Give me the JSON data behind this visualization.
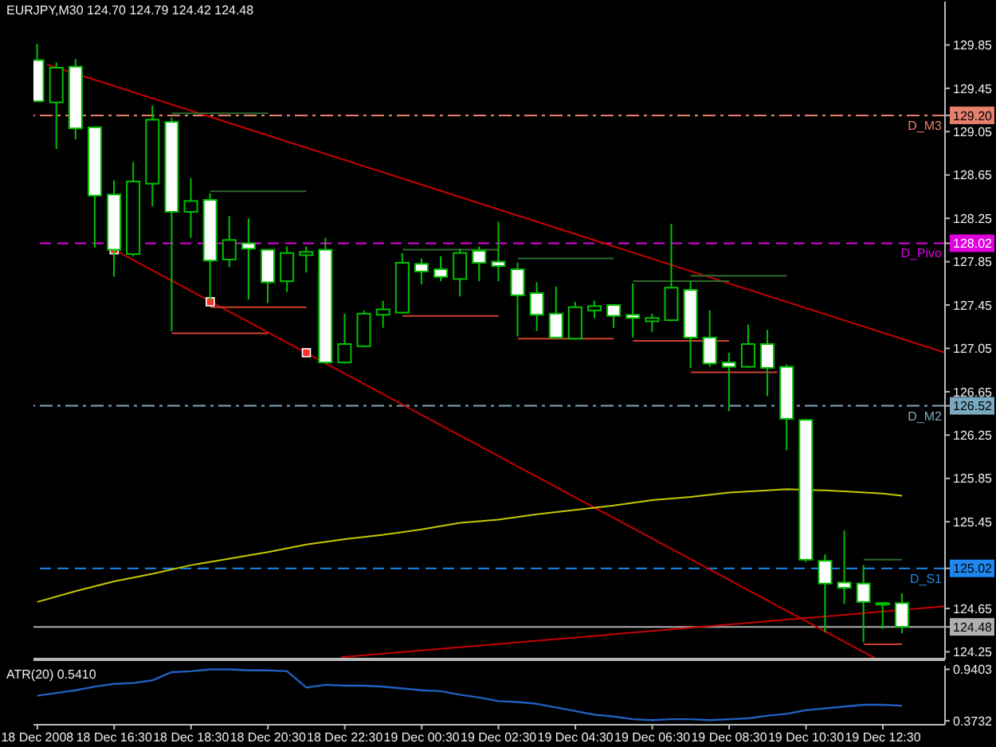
{
  "chart_data": [
    {
      "type": "candlestick",
      "title": "EURJPY,M30 124.70 124.79 124.42 124.48",
      "color": "#00c000",
      "tick_labels": "y",
      "xlim": [
        "2008-12-18T14:24",
        "2008-12-19T14:07"
      ],
      "ylim": [
        124.18,
        130.25
      ],
      "yticks": [
        124.25,
        124.48,
        124.65,
        125.02,
        125.45,
        125.85,
        126.25,
        126.52,
        126.65,
        127.05,
        127.45,
        127.85,
        128.02,
        128.25,
        128.65,
        129.05,
        {
          "value": 129.2,
          "label": "129.20"
        },
        129.45,
        129.85
      ],
      "x": [
        "2008-12-18T14:30",
        "2008-12-18T15:00",
        "2008-12-18T15:30",
        "2008-12-18T16:00",
        "2008-12-18T16:30",
        "2008-12-18T17:00",
        "2008-12-18T17:30",
        "2008-12-18T18:00",
        "2008-12-18T18:30",
        "2008-12-18T19:00",
        "2008-12-18T19:30",
        "2008-12-18T20:00",
        "2008-12-18T20:30",
        "2008-12-18T21:00",
        "2008-12-18T21:30",
        "2008-12-18T22:00",
        "2008-12-18T22:30",
        "2008-12-18T23:00",
        "2008-12-18T23:30",
        "2008-12-19T00:00",
        "2008-12-19T00:30",
        "2008-12-19T01:00",
        "2008-12-19T01:30",
        "2008-12-19T02:00",
        "2008-12-19T02:30",
        "2008-12-19T03:00",
        "2008-12-19T03:30",
        "2008-12-19T04:00",
        "2008-12-19T04:30",
        "2008-12-19T05:00",
        "2008-12-19T05:30",
        "2008-12-19T06:00",
        "2008-12-19T06:30",
        "2008-12-19T07:00",
        "2008-12-19T07:30",
        "2008-12-19T08:00",
        "2008-12-19T08:30",
        "2008-12-19T09:00",
        "2008-12-19T09:30",
        "2008-12-19T10:00",
        "2008-12-19T10:30",
        "2008-12-19T11:00",
        "2008-12-19T11:30",
        "2008-12-19T12:00",
        "2008-12-19T12:30",
        "2008-12-19T13:00"
      ],
      "ohlc": [
        [
          129.71,
          129.86,
          129.33,
          129.33
        ],
        [
          129.32,
          129.69,
          128.89,
          129.64
        ],
        [
          129.65,
          129.72,
          128.98,
          129.08
        ],
        [
          129.09,
          129.09,
          127.98,
          128.46
        ],
        [
          128.47,
          128.6,
          127.71,
          127.96
        ],
        [
          127.92,
          128.77,
          127.9,
          128.59
        ],
        [
          128.57,
          129.29,
          128.36,
          129.16
        ],
        [
          129.14,
          129.18,
          127.21,
          128.31
        ],
        [
          128.31,
          128.62,
          128.07,
          128.41
        ],
        [
          128.42,
          128.48,
          127.49,
          127.86
        ],
        [
          127.87,
          128.27,
          127.8,
          128.05
        ],
        [
          128.02,
          128.25,
          127.5,
          127.97
        ],
        [
          127.96,
          127.96,
          127.47,
          127.66
        ],
        [
          127.67,
          127.99,
          127.57,
          127.93
        ],
        [
          127.91,
          127.99,
          127.75,
          127.94
        ],
        [
          127.96,
          128.07,
          126.91,
          126.92
        ],
        [
          126.92,
          127.37,
          126.91,
          127.09
        ],
        [
          127.07,
          127.4,
          127.06,
          127.37
        ],
        [
          127.36,
          127.49,
          127.24,
          127.41
        ],
        [
          127.38,
          127.93,
          127.37,
          127.84
        ],
        [
          127.83,
          127.88,
          127.64,
          127.76
        ],
        [
          127.78,
          127.9,
          127.67,
          127.71
        ],
        [
          127.69,
          127.97,
          127.53,
          127.93
        ],
        [
          127.95,
          127.99,
          127.67,
          127.84
        ],
        [
          127.85,
          128.22,
          127.67,
          127.81
        ],
        [
          127.78,
          127.84,
          127.16,
          127.54
        ],
        [
          127.56,
          127.66,
          127.21,
          127.36
        ],
        [
          127.37,
          127.62,
          127.14,
          127.15
        ],
        [
          127.14,
          127.48,
          127.13,
          127.43
        ],
        [
          127.4,
          127.49,
          127.33,
          127.44
        ],
        [
          127.45,
          127.46,
          127.24,
          127.35
        ],
        [
          127.36,
          127.65,
          127.15,
          127.33
        ],
        [
          127.3,
          127.37,
          127.2,
          127.33
        ],
        [
          127.31,
          128.2,
          127.3,
          127.61
        ],
        [
          127.59,
          127.67,
          126.87,
          127.15
        ],
        [
          127.15,
          127.4,
          126.88,
          126.91
        ],
        [
          126.92,
          127.01,
          126.47,
          126.88
        ],
        [
          126.88,
          127.27,
          126.87,
          127.09
        ],
        [
          127.09,
          127.22,
          126.61,
          126.87
        ],
        [
          126.88,
          126.9,
          126.11,
          126.4
        ],
        [
          126.39,
          126.4,
          125.08,
          125.1
        ],
        [
          125.09,
          125.15,
          124.43,
          124.88
        ],
        [
          124.89,
          125.37,
          124.69,
          124.84
        ],
        [
          124.88,
          125.05,
          124.34,
          124.71
        ],
        [
          124.69,
          124.71,
          124.46,
          124.7
        ],
        [
          124.7,
          124.79,
          124.42,
          124.48
        ]
      ],
      "ref_lines": [
        {
          "axis": "y",
          "value": 129.2,
          "label": "D_M3",
          "color": "#e8806c",
          "line_style": "dashdot"
        },
        {
          "axis": "y",
          "value": 128.02,
          "label": "D_Pivo",
          "color": "#e000e0",
          "line_style": "dashed"
        },
        {
          "axis": "y",
          "value": 126.52,
          "label": "D_M2",
          "color": "#7aaac0",
          "line_style": "dashdot"
        },
        {
          "axis": "y",
          "value": 125.02,
          "label": "D_S1",
          "color": "#1e88f0",
          "line_style": "dashed"
        },
        {
          "axis": "y",
          "value": 124.48,
          "color": "#b0b0b0",
          "line_style": "solid"
        }
      ],
      "series": [
        {
          "type": "line",
          "color": "#c80000",
          "x": [
            "2008-12-18T14:45",
            "2008-12-19T14:07"
          ],
          "values": [
            129.67,
            127.01
          ]
        },
        {
          "type": "line",
          "color": "#c80000",
          "x": [
            "2008-12-18T16:30",
            "2008-12-19T12:18"
          ],
          "values": [
            127.96,
            124.19
          ]
        },
        {
          "type": "line",
          "color": "#c80000",
          "x": [
            "2008-12-18T22:24",
            "2008-12-19T14:07"
          ],
          "values": [
            124.2,
            124.67
          ]
        },
        {
          "type": "line",
          "color": "#c8c800",
          "x": [
            "2008-12-18T14:30",
            "2008-12-18T15:30",
            "2008-12-18T16:30",
            "2008-12-18T17:30",
            "2008-12-18T18:30",
            "2008-12-18T19:30",
            "2008-12-18T20:30",
            "2008-12-18T21:30",
            "2008-12-18T22:30",
            "2008-12-18T23:30",
            "2008-12-19T00:30",
            "2008-12-19T01:30",
            "2008-12-19T02:30",
            "2008-12-19T03:30",
            "2008-12-19T04:30",
            "2008-12-19T05:30",
            "2008-12-19T06:30",
            "2008-12-19T07:30",
            "2008-12-19T08:30",
            "2008-12-19T09:30",
            "2008-12-19T10:00",
            "2008-12-19T11:00",
            "2008-12-19T11:30",
            "2008-12-19T12:30",
            "2008-12-19T13:00"
          ],
          "values": [
            124.71,
            124.81,
            124.9,
            124.97,
            125.05,
            125.11,
            125.17,
            125.24,
            125.29,
            125.33,
            125.38,
            125.44,
            125.47,
            125.52,
            125.56,
            125.6,
            125.65,
            125.68,
            125.72,
            125.74,
            125.75,
            125.74,
            125.73,
            125.71,
            125.69
          ]
        },
        {
          "type": "line",
          "color": "#2d6a2d",
          "x": [
            "2008-12-18T18:00",
            "2008-12-18T20:30"
          ],
          "values": [
            129.22,
            129.22
          ]
        },
        {
          "type": "line",
          "color": "#d04030",
          "x": [
            "2008-12-18T18:00",
            "2008-12-18T20:30"
          ],
          "values": [
            127.19,
            127.19
          ]
        },
        {
          "type": "line",
          "color": "#2d6a2d",
          "x": [
            "2008-12-18T19:00",
            "2008-12-18T21:30"
          ],
          "values": [
            128.5,
            128.5
          ]
        },
        {
          "type": "line",
          "color": "#d04030",
          "x": [
            "2008-12-18T19:00",
            "2008-12-18T21:30"
          ],
          "values": [
            127.43,
            127.43
          ]
        },
        {
          "type": "line",
          "color": "#2d6a2d",
          "x": [
            "2008-12-19T00:00",
            "2008-12-19T02:30"
          ],
          "values": [
            127.96,
            127.96
          ]
        },
        {
          "type": "line",
          "color": "#d04030",
          "x": [
            "2008-12-19T00:00",
            "2008-12-19T02:30"
          ],
          "values": [
            127.35,
            127.35
          ]
        },
        {
          "type": "line",
          "color": "#2d6a2d",
          "x": [
            "2008-12-19T03:00",
            "2008-12-19T05:30"
          ],
          "values": [
            127.88,
            127.88
          ]
        },
        {
          "type": "line",
          "color": "#d04030",
          "x": [
            "2008-12-19T03:00",
            "2008-12-19T05:30"
          ],
          "values": [
            127.14,
            127.14
          ]
        },
        {
          "type": "line",
          "color": "#2d6a2d",
          "x": [
            "2008-12-19T06:00",
            "2008-12-19T08:30"
          ],
          "values": [
            127.67,
            127.67
          ]
        },
        {
          "type": "line",
          "color": "#d04030",
          "x": [
            "2008-12-19T06:00",
            "2008-12-19T08:30"
          ],
          "values": [
            127.12,
            127.12
          ]
        },
        {
          "type": "line",
          "color": "#2d6a2d",
          "x": [
            "2008-12-19T07:30",
            "2008-12-19T10:00"
          ],
          "values": [
            127.72,
            127.72
          ]
        },
        {
          "type": "line",
          "color": "#d04030",
          "x": [
            "2008-12-19T07:30",
            "2008-12-19T09:45"
          ],
          "values": [
            126.83,
            126.83
          ]
        },
        {
          "type": "line",
          "color": "#2d6a2d",
          "x": [
            "2008-12-19T12:00",
            "2008-12-19T13:00"
          ],
          "values": [
            125.1,
            125.1
          ]
        },
        {
          "type": "line",
          "color": "#d04030",
          "x": [
            "2008-12-19T12:00",
            "2008-12-19T13:00"
          ],
          "values": [
            124.32,
            124.32
          ]
        },
        {
          "type": "scatter",
          "marker": "square",
          "color": "#ff3030",
          "x": [
            "2008-12-18T16:30",
            "2008-12-18T19:00",
            "2008-12-18T21:30"
          ],
          "values": [
            127.96,
            127.48,
            127.01
          ]
        }
      ]
    },
    {
      "type": "line",
      "title": "ATR(20) 0.5410",
      "color": "#2060c0",
      "xlim": [
        "2008-12-18T14:24",
        "2008-12-19T14:07"
      ],
      "ylim": [
        0.33,
        0.98
      ],
      "yticks": [
        0.3732,
        0.9403
      ],
      "xticks": [
        {
          "value": "2008-12-18T14:30",
          "label": "18 Dec 2008"
        },
        {
          "value": "2008-12-18T16:30",
          "label": "18 Dec 16:30"
        },
        {
          "value": "2008-12-18T18:30",
          "label": "18 Dec 18:30"
        },
        {
          "value": "2008-12-18T20:30",
          "label": "18 Dec 20:30"
        },
        {
          "value": "2008-12-18T22:30",
          "label": "18 Dec 22:30"
        },
        {
          "value": "2008-12-19T00:30",
          "label": "19 Dec 00:30"
        },
        {
          "value": "2008-12-19T02:30",
          "label": "19 Dec 02:30"
        },
        {
          "value": "2008-12-19T04:30",
          "label": "19 Dec 04:30"
        },
        {
          "value": "2008-12-19T06:30",
          "label": "19 Dec 06:30"
        },
        {
          "value": "2008-12-19T08:30",
          "label": "19 Dec 08:30"
        },
        {
          "value": "2008-12-19T10:30",
          "label": "19 Dec 10:30"
        },
        {
          "value": "2008-12-19T12:30",
          "label": "19 Dec 12:30"
        }
      ],
      "x": [
        "2008-12-18T14:30",
        "2008-12-18T15:00",
        "2008-12-18T15:30",
        "2008-12-18T16:00",
        "2008-12-18T16:30",
        "2008-12-18T17:00",
        "2008-12-18T17:30",
        "2008-12-18T18:00",
        "2008-12-18T18:30",
        "2008-12-18T19:00",
        "2008-12-18T19:30",
        "2008-12-18T20:00",
        "2008-12-18T20:30",
        "2008-12-18T21:00",
        "2008-12-18T21:30",
        "2008-12-18T22:00",
        "2008-12-18T22:30",
        "2008-12-18T23:00",
        "2008-12-18T23:30",
        "2008-12-19T00:00",
        "2008-12-19T00:30",
        "2008-12-19T01:00",
        "2008-12-19T01:30",
        "2008-12-19T02:00",
        "2008-12-19T02:30",
        "2008-12-19T03:00",
        "2008-12-19T03:30",
        "2008-12-19T04:00",
        "2008-12-19T04:30",
        "2008-12-19T05:00",
        "2008-12-19T05:30",
        "2008-12-19T06:00",
        "2008-12-19T06:30",
        "2008-12-19T07:00",
        "2008-12-19T07:30",
        "2008-12-19T08:00",
        "2008-12-19T08:30",
        "2008-12-19T09:00",
        "2008-12-19T09:30",
        "2008-12-19T10:00",
        "2008-12-19T10:30",
        "2008-12-19T11:00",
        "2008-12-19T11:30",
        "2008-12-19T12:00",
        "2008-12-19T12:30",
        "2008-12-19T13:00"
      ],
      "values": [
        0.65,
        0.68,
        0.71,
        0.75,
        0.78,
        0.79,
        0.82,
        0.91,
        0.92,
        0.94,
        0.94,
        0.93,
        0.93,
        0.92,
        0.74,
        0.77,
        0.76,
        0.76,
        0.75,
        0.73,
        0.71,
        0.7,
        0.66,
        0.63,
        0.59,
        0.58,
        0.56,
        0.52,
        0.48,
        0.44,
        0.42,
        0.39,
        0.38,
        0.39,
        0.39,
        0.38,
        0.39,
        0.4,
        0.43,
        0.45,
        0.49,
        0.51,
        0.53,
        0.55,
        0.55,
        0.54
      ]
    }
  ]
}
